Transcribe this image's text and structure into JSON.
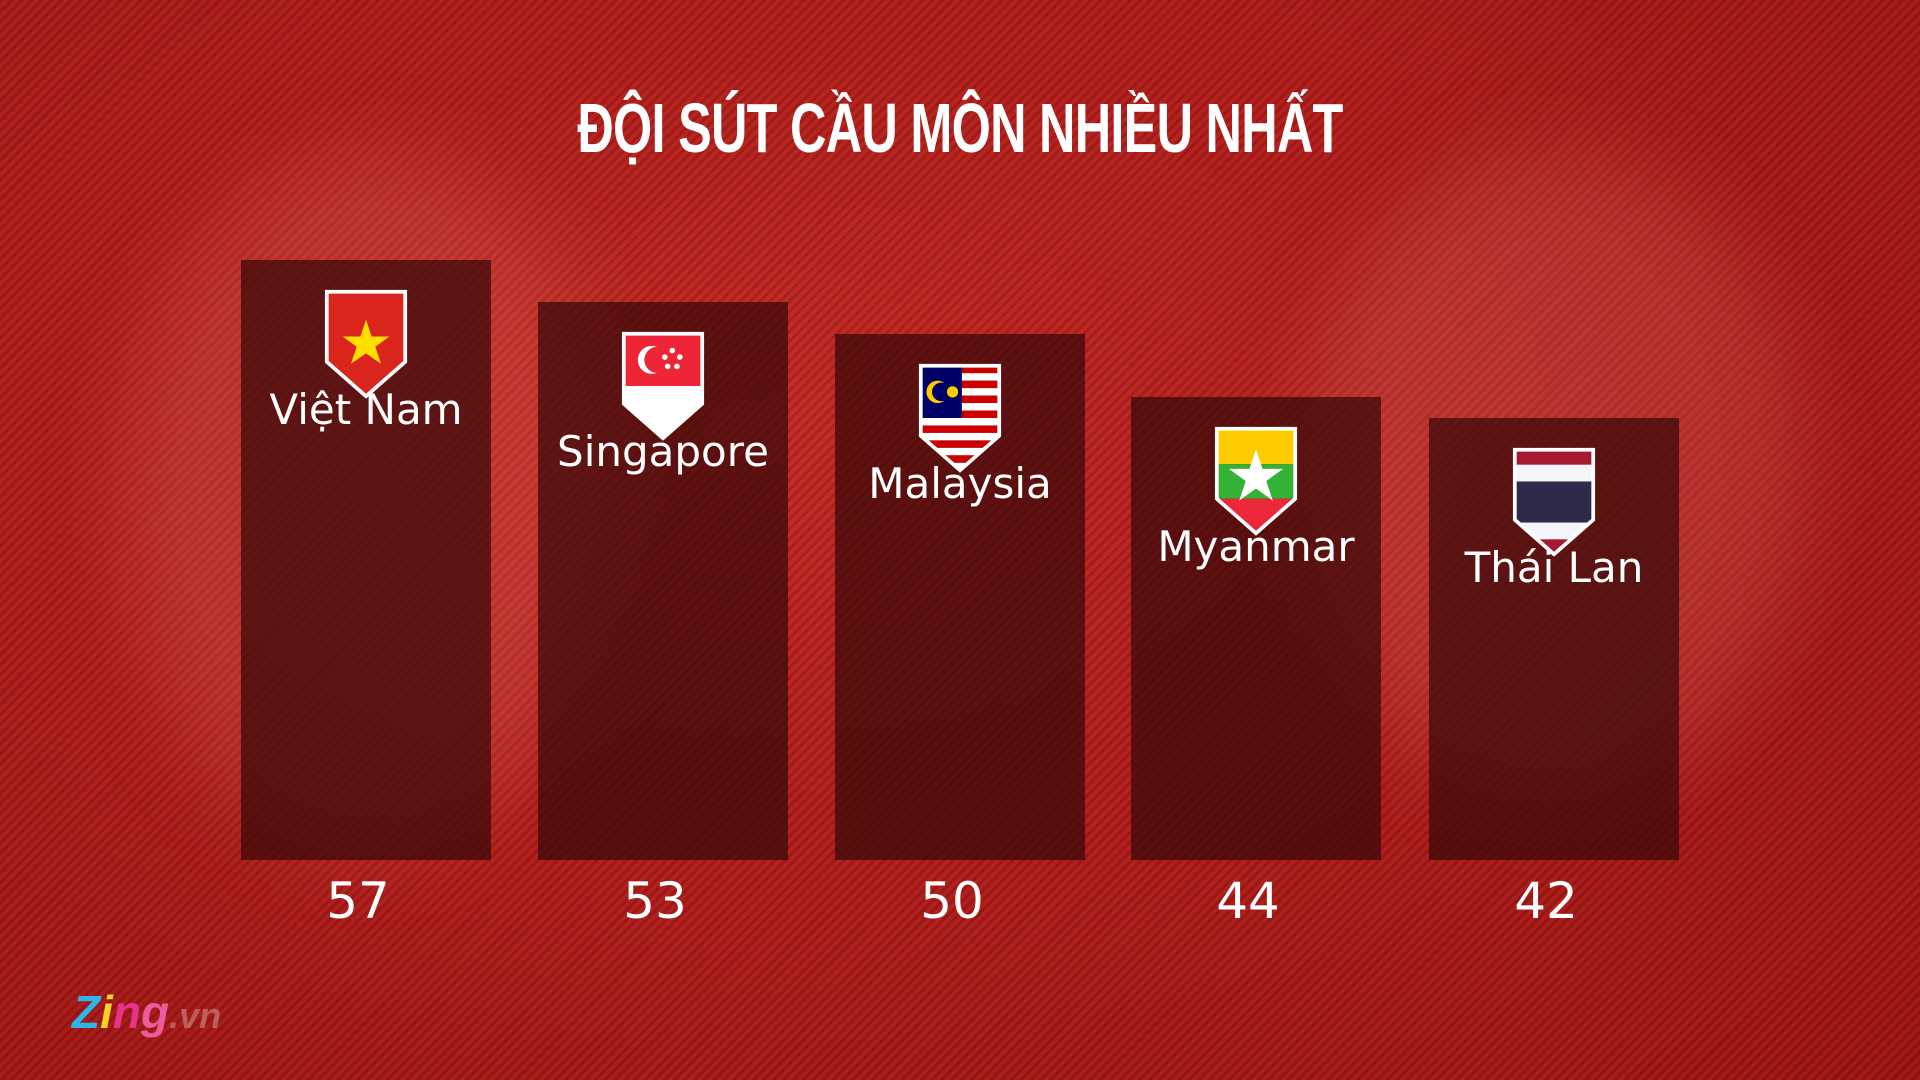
{
  "chart_data": {
    "type": "bar",
    "title": "ĐỘI SÚT CẦU MÔN NHIỀU NHẤT",
    "categories": [
      "Việt Nam",
      "Singapore",
      "Malaysia",
      "Myanmar",
      "Thái Lan"
    ],
    "values": [
      57,
      53,
      50,
      44,
      42
    ],
    "flags": [
      "vietnam-flag",
      "singapore-flag",
      "malaysia-flag",
      "myanmar-flag",
      "thailand-flag"
    ],
    "ylim": [
      0,
      57
    ],
    "grid": false,
    "bar_color": "#370808"
  },
  "branding": {
    "logo": "Zing.vn"
  }
}
